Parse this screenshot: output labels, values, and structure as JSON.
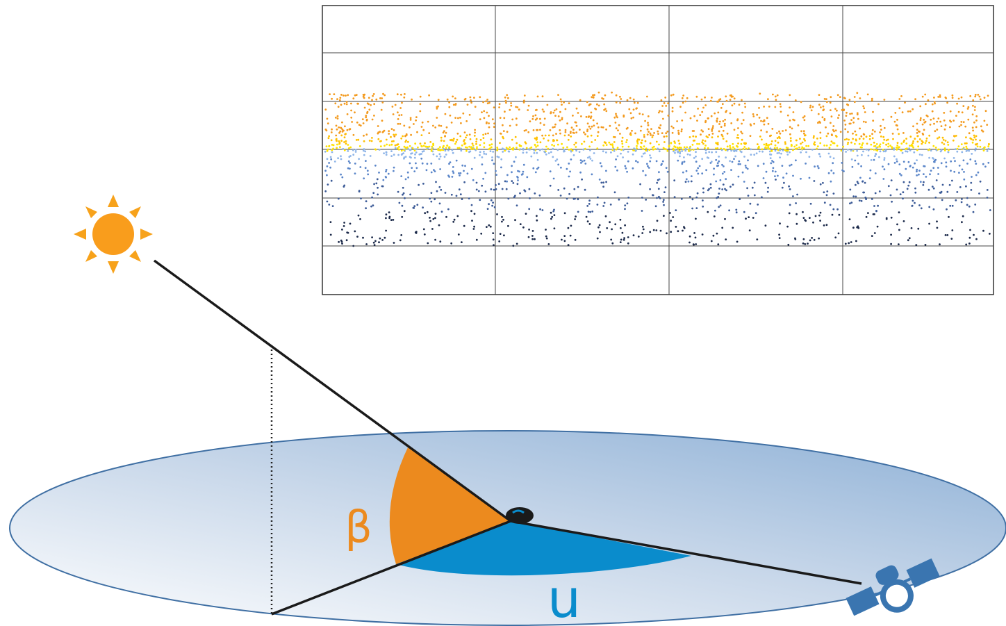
{
  "labels": {
    "beta": "β",
    "u": "u"
  }
}
